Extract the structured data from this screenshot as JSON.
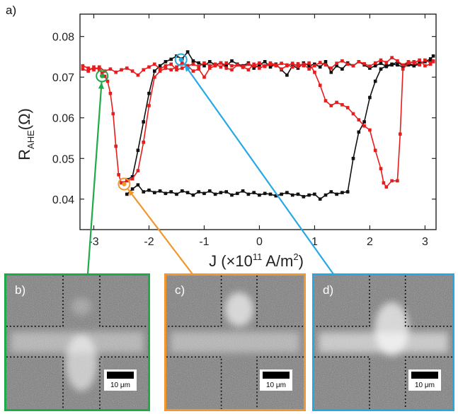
{
  "figure": {
    "panel_a": "a)",
    "ylabel": {
      "main": "R",
      "sub": "AHE",
      "unit": "(Ω)"
    },
    "xlabel": {
      "pre": "J (×10",
      "exp": "11",
      "mid": " A/m",
      "sq": "2",
      "post": ")"
    }
  },
  "insets": [
    {
      "label": "b)",
      "scale": "10 μm",
      "border_color": "#1faa4a",
      "blob": "center-bottom"
    },
    {
      "label": "c)",
      "scale": "10 μm",
      "border_color": "#f2962f",
      "blob": "top"
    },
    {
      "label": "d)",
      "scale": "10 μm",
      "border_color": "#25a9e6",
      "blob": "center-up"
    }
  ],
  "markers": [
    {
      "color": "#1faa4a",
      "x": -2.85,
      "y": 0.0703,
      "inset": 0
    },
    {
      "color": "#f2962f",
      "x": -2.45,
      "y": 0.0437,
      "inset": 1
    },
    {
      "color": "#25a9e6",
      "x": -1.42,
      "y": 0.0743,
      "inset": 2
    }
  ],
  "chart_data": {
    "type": "line",
    "xlabel": "J (×10^11 A/m^2)",
    "ylabel": "R_AHE(Ω)",
    "xlim": [
      -3.25,
      3.2
    ],
    "ylim": [
      0.0325,
      0.0855
    ],
    "xticks": [
      -3,
      -2,
      -1,
      0,
      1,
      2,
      3
    ],
    "yticks": [
      0.04,
      0.05,
      0.06,
      0.07,
      0.08
    ],
    "yticklabels": [
      "0.04",
      "0.05",
      "0.06",
      "0.07",
      "0.08"
    ],
    "grid": false,
    "series": [
      {
        "color": "#111111",
        "segments": [
          {
            "x": [
              -2.4,
              -2.3,
              -2.2,
              -2.1,
              -2.0,
              -1.9,
              -1.8,
              -1.7,
              -1.6,
              -1.5,
              -1.4,
              -1.3,
              -1.2,
              -1.1,
              -1.0,
              -0.9,
              -0.8,
              -0.7,
              -0.6,
              -0.5,
              -0.4,
              -0.3,
              -0.2,
              -0.1,
              0.0,
              0.1,
              0.2,
              0.3,
              0.4,
              0.5,
              0.6,
              0.7,
              0.8,
              0.9,
              1.0,
              1.1,
              1.2,
              1.3,
              1.4,
              1.5,
              1.6,
              1.7,
              1.8,
              1.9,
              2.0,
              2.1,
              2.2,
              2.3,
              2.4,
              2.5,
              2.6,
              2.7,
              2.8,
              2.9,
              3.0,
              3.1,
              3.15
            ],
            "y": [
              0.0412,
              0.0425,
              0.0435,
              0.0418,
              0.0422,
              0.0416,
              0.042,
              0.0414,
              0.0418,
              0.0412,
              0.042,
              0.0416,
              0.041,
              0.0418,
              0.0414,
              0.042,
              0.0412,
              0.0416,
              0.0418,
              0.041,
              0.0414,
              0.042,
              0.0412,
              0.0416,
              0.041,
              0.0414,
              0.0412,
              0.0408,
              0.0412,
              0.0416,
              0.041,
              0.0412,
              0.0406,
              0.041,
              0.0412,
              0.04,
              0.041,
              0.0418,
              0.0412,
              0.0416,
              0.0418,
              0.05,
              0.0565,
              0.059,
              0.065,
              0.069,
              0.072,
              0.0728,
              0.0732,
              0.073,
              0.0725,
              0.073,
              0.0728,
              0.0735,
              0.0738,
              0.0745,
              0.0752
            ]
          },
          {
            "x": [
              -2.45,
              -2.4,
              -2.3,
              -2.2,
              -2.1,
              -2.0,
              -1.9,
              -1.8,
              -1.7,
              -1.6,
              -1.5,
              -1.4,
              -1.3,
              -1.2,
              -1.1,
              -1.0,
              -0.9,
              -0.8,
              -0.7,
              -0.6,
              -0.5,
              -0.4,
              -0.3,
              -0.2,
              -0.1,
              0.0,
              0.1,
              0.2,
              0.3,
              0.4,
              0.5,
              0.6,
              0.7,
              0.8,
              0.9,
              1.0,
              1.1,
              1.2,
              1.3,
              1.4,
              1.5,
              1.6,
              1.7,
              1.8,
              1.9,
              2.0,
              2.1,
              2.2,
              2.3,
              2.4,
              2.5,
              2.6,
              2.7,
              2.8,
              2.9,
              3.0,
              3.1
            ],
            "y": [
              0.044,
              0.0448,
              0.0455,
              0.052,
              0.059,
              0.066,
              0.0715,
              0.0728,
              0.0738,
              0.0744,
              0.0752,
              0.0745,
              0.0762,
              0.074,
              0.0735,
              0.0728,
              0.0738,
              0.073,
              0.0735,
              0.0728,
              0.074,
              0.0732,
              0.0728,
              0.0735,
              0.0722,
              0.073,
              0.0738,
              0.0725,
              0.0732,
              0.0718,
              0.0705,
              0.0728,
              0.0722,
              0.0735,
              0.0728,
              0.0732,
              0.0725,
              0.0738,
              0.0712,
              0.0728,
              0.072,
              0.0735,
              0.0728,
              0.0738,
              0.073,
              0.0722,
              0.0728,
              0.0734,
              0.0726,
              0.073,
              0.0738,
              0.0728,
              0.0735,
              0.0728,
              0.0732,
              0.074,
              0.0738
            ]
          }
        ]
      },
      {
        "color": "#e81c1c",
        "segments": [
          {
            "x": [
              -3.2,
              -3.1,
              -3.0,
              -2.9,
              -2.85,
              -2.8,
              -2.75,
              -2.7,
              -2.65,
              -2.6,
              -2.55,
              -2.5,
              -2.4,
              -2.3,
              -2.2,
              -2.1,
              -2.0,
              -1.9,
              -1.8,
              -1.7,
              -1.6,
              -1.5,
              -1.4,
              -1.3,
              -1.2,
              -1.1,
              -1.0,
              -0.9,
              -0.8,
              -0.7,
              -0.6,
              -0.5,
              -0.4,
              -0.3,
              -0.2,
              -0.1,
              0.0,
              0.1,
              0.2,
              0.3,
              0.4,
              0.5,
              0.6,
              0.7,
              0.8,
              0.9,
              1.0,
              1.1,
              1.2,
              1.3,
              1.4,
              1.5,
              1.6,
              1.7,
              1.8,
              1.9,
              2.0,
              2.1,
              2.2,
              2.25,
              2.3,
              2.4,
              2.5,
              2.55,
              2.6,
              2.7,
              2.8,
              2.9,
              3.0,
              3.1,
              3.15
            ],
            "y": [
              0.072,
              0.0715,
              0.0725,
              0.0718,
              0.071,
              0.0702,
              0.069,
              0.066,
              0.061,
              0.053,
              0.046,
              0.044,
              0.0445,
              0.045,
              0.047,
              0.054,
              0.063,
              0.07,
              0.0715,
              0.0722,
              0.0718,
              0.0725,
              0.0735,
              0.0728,
              0.0732,
              0.0726,
              0.0735,
              0.0728,
              0.0732,
              0.0725,
              0.0735,
              0.0728,
              0.073,
              0.0724,
              0.0732,
              0.0728,
              0.0735,
              0.0726,
              0.0732,
              0.0728,
              0.0734,
              0.073,
              0.0725,
              0.0733,
              0.0728,
              0.0735,
              0.0712,
              0.068,
              0.0642,
              0.063,
              0.0638,
              0.0632,
              0.0625,
              0.061,
              0.0595,
              0.058,
              0.057,
              0.052,
              0.0475,
              0.044,
              0.043,
              0.0445,
              0.0445,
              0.056,
              0.072,
              0.0735,
              0.0738,
              0.073,
              0.0742,
              0.0735,
              0.074
            ]
          },
          {
            "x": [
              -3.2,
              -3.1,
              -3.0,
              -2.9,
              -2.8,
              -2.7,
              -2.6,
              -2.5,
              -2.4,
              -2.3,
              -2.2,
              -2.1,
              -2.0,
              -1.9,
              -1.8,
              -1.7,
              -1.6,
              -1.5,
              -1.4,
              -1.3,
              -1.2,
              -1.1,
              -1.0,
              -0.9,
              -0.8,
              -0.7,
              -0.6,
              -0.5,
              -0.4,
              -0.3,
              -0.2,
              -0.1,
              0.0,
              0.1,
              0.2,
              0.3,
              0.4,
              0.5,
              0.6,
              0.7,
              0.8,
              0.9,
              1.0,
              1.1,
              1.2,
              1.3,
              1.4,
              1.5,
              1.6,
              1.7,
              1.8,
              1.9,
              2.0,
              2.1,
              2.2,
              2.3,
              2.4,
              2.5,
              2.6,
              2.7,
              2.8,
              2.9,
              3.0,
              3.1,
              3.15
            ],
            "y": [
              0.0728,
              0.0722,
              0.0718,
              0.0725,
              0.0715,
              0.072,
              0.0712,
              0.0718,
              0.0722,
              0.0715,
              0.0705,
              0.0718,
              0.0725,
              0.0732,
              0.072,
              0.0728,
              0.0732,
              0.0718,
              0.0722,
              0.0728,
              0.0715,
              0.072,
              0.07,
              0.0722,
              0.0728,
              0.0735,
              0.0722,
              0.0718,
              0.073,
              0.0726,
              0.0718,
              0.0732,
              0.0722,
              0.0728,
              0.0735,
              0.073,
              0.072,
              0.0728,
              0.0734,
              0.0726,
              0.0732,
              0.072,
              0.0728,
              0.0736,
              0.073,
              0.0722,
              0.0734,
              0.074,
              0.0732,
              0.0728,
              0.0738,
              0.0733,
              0.0727,
              0.0735,
              0.0742,
              0.0736,
              0.0748,
              0.074,
              0.073,
              0.0738,
              0.0735,
              0.0742,
              0.0728,
              0.0732,
              0.0738
            ]
          }
        ]
      }
    ]
  }
}
